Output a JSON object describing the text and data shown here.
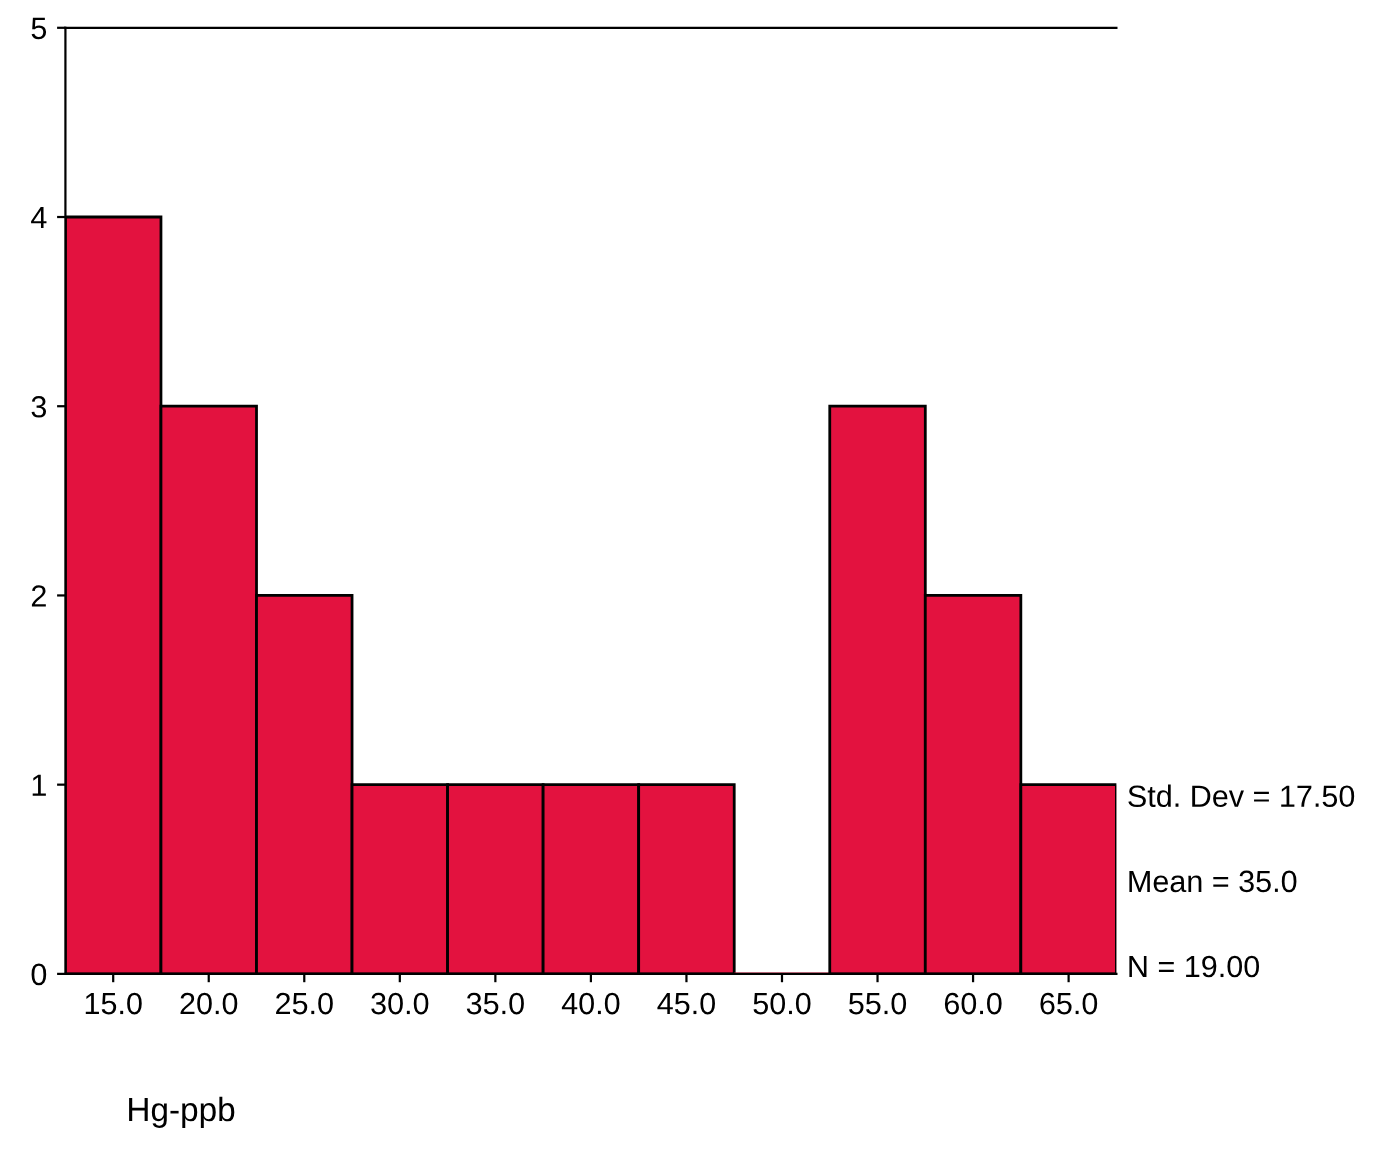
{
  "chart_data": {
    "type": "histogram",
    "xlabel": "Hg-ppb",
    "bins": [
      12.5,
      17.5,
      22.5,
      27.5,
      32.5,
      37.5,
      42.5,
      47.5,
      52.5,
      57.5,
      62.5,
      67.5
    ],
    "values": [
      4,
      3,
      2,
      1,
      1,
      1,
      1,
      0,
      3,
      2,
      1
    ],
    "color": "#e3123f",
    "xlim": [
      12.5,
      67.5
    ],
    "xticks": [
      {
        "value": 15,
        "label": "15.0"
      },
      {
        "value": 20,
        "label": "20.0"
      },
      {
        "value": 25,
        "label": "25.0"
      },
      {
        "value": 30,
        "label": "30.0"
      },
      {
        "value": 35,
        "label": "35.0"
      },
      {
        "value": 40,
        "label": "40.0"
      },
      {
        "value": 45,
        "label": "45.0"
      },
      {
        "value": 50,
        "label": "50.0"
      },
      {
        "value": 55,
        "label": "55.0"
      },
      {
        "value": 60,
        "label": "60.0"
      },
      {
        "value": 65,
        "label": "65.0"
      }
    ],
    "ylim": [
      0,
      5
    ],
    "yticks": [
      0,
      1,
      2,
      3,
      4,
      5
    ],
    "grid": false,
    "annotations": [
      "Std. Dev = 17.50",
      "Mean = 35.0",
      "N = 19.00"
    ]
  }
}
